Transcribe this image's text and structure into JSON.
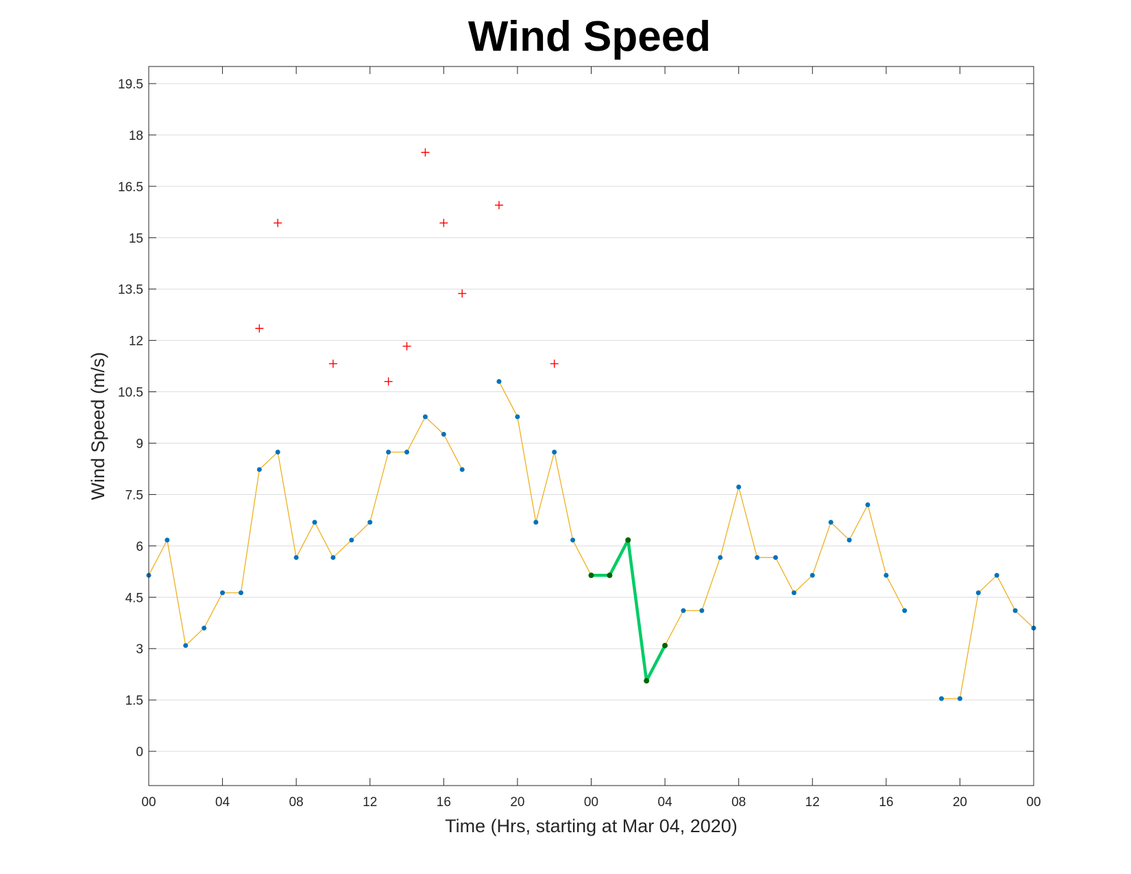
{
  "chart_data": {
    "type": "line",
    "title": "Wind Speed",
    "xlabel": "Time (Hrs, starting at Mar 04, 2020)",
    "ylabel": "Wind Speed (m/s)",
    "xlim": [
      0,
      48
    ],
    "ylim": [
      -1,
      20
    ],
    "xticks": [
      0,
      4,
      8,
      12,
      16,
      20,
      24,
      28,
      32,
      36,
      40,
      44,
      48
    ],
    "xtick_labels": [
      "00",
      "04",
      "08",
      "12",
      "16",
      "20",
      "00",
      "04",
      "08",
      "12",
      "16",
      "20",
      "00"
    ],
    "yticks": [
      0,
      1.5,
      3,
      4.5,
      6,
      7.5,
      9,
      10.5,
      12,
      13.5,
      15,
      16.5,
      18,
      19.5
    ],
    "ytick_labels": [
      "0",
      "1.5",
      "3",
      "4.5",
      "6",
      "7.5",
      "9",
      "10.5",
      "12",
      "13.5",
      "15",
      "16.5",
      "18",
      "19.5"
    ],
    "grid": "horizontal",
    "series": [
      {
        "style": "line-with-dots",
        "line_color": "#EDB120",
        "marker_color": "#0072BD",
        "segments": [
          {
            "x": [
              0,
              1,
              2,
              3,
              4,
              5,
              6,
              7,
              8,
              9,
              10,
              11,
              12,
              13,
              14,
              15,
              16,
              17
            ],
            "y": [
              5.14,
              6.17,
              3.09,
              3.6,
              4.63,
              4.63,
              8.23,
              8.74,
              5.66,
              6.69,
              5.66,
              6.17,
              6.69,
              8.74,
              8.74,
              9.77,
              9.26,
              8.23
            ]
          },
          {
            "x": [
              19,
              20,
              21,
              22,
              23,
              24,
              25,
              26,
              27,
              28,
              29,
              30,
              31,
              32,
              33,
              34,
              35,
              36,
              37,
              38,
              39,
              40,
              41
            ],
            "y": [
              10.8,
              9.77,
              6.69,
              8.74,
              6.17,
              5.14,
              5.14,
              6.17,
              2.06,
              3.09,
              4.11,
              4.11,
              5.66,
              7.72,
              5.66,
              5.66,
              4.63,
              5.14,
              6.69,
              6.17,
              7.2,
              5.14,
              4.11
            ]
          },
          {
            "x": [
              43,
              44,
              45,
              46,
              47,
              48
            ],
            "y": [
              1.54,
              1.54,
              4.63,
              5.14,
              4.11,
              3.6
            ]
          }
        ]
      },
      {
        "style": "highlight-line",
        "line_color": "#00CC66",
        "marker_color": "#006600",
        "x": [
          24,
          25,
          26,
          27,
          28
        ],
        "y": [
          5.14,
          5.14,
          6.17,
          2.06,
          3.09
        ]
      },
      {
        "style": "plus-markers",
        "color": "#FF0000",
        "x": [
          6,
          7,
          10,
          13,
          14,
          15,
          16,
          17,
          19,
          22
        ],
        "y": [
          12.35,
          15.43,
          11.32,
          10.8,
          11.83,
          17.49,
          15.43,
          13.37,
          15.95,
          11.32
        ]
      }
    ]
  }
}
